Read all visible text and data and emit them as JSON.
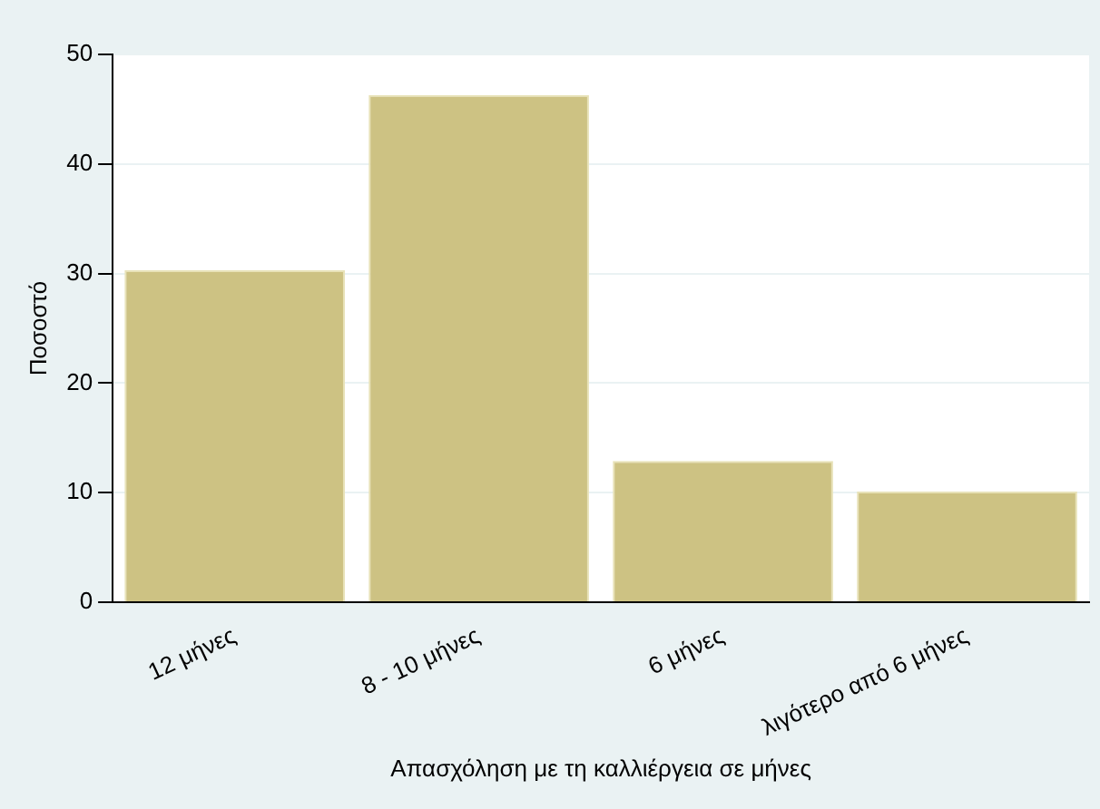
{
  "chart_data": {
    "type": "bar",
    "xlabel": "Απασχόληση με τη καλλιέργεια σε μήνες",
    "ylabel": "Ποσοστό",
    "categories": [
      "12 μήνες",
      "8 - 10 μήνες",
      "6 μήνες",
      "λιγότερο από 6 μήνες"
    ],
    "values": [
      30.3,
      46.3,
      12.9,
      10.1
    ],
    "color": "#cdc283",
    "ylim": [
      0,
      50
    ],
    "yticks": [
      0,
      10,
      20,
      30,
      40,
      50
    ],
    "grid": "y"
  }
}
